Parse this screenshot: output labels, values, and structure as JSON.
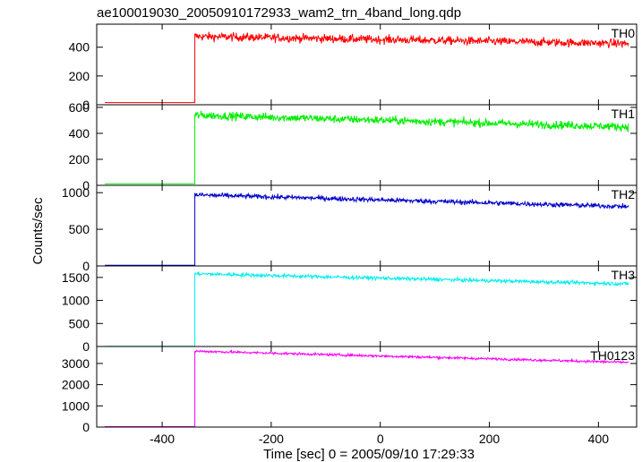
{
  "title": "ae100019030_20050910172933_wam2_trn_4band_long.qdp",
  "ylabel": "Counts/sec",
  "xlabel": "Time [sec] 0 = 2005/09/10 17:29:33",
  "chart_data": {
    "type": "line",
    "title": "ae100019030_20050910172933_wam2_trn_4band_long.qdp",
    "xlabel": "Time [sec] 0 = 2005/09/10 17:29:33",
    "ylabel": "Counts/sec",
    "xlim": [
      -520,
      470
    ],
    "x_ticks": [
      -400,
      -200,
      0,
      200,
      400
    ],
    "x_range_data": [
      -505,
      455
    ],
    "step_time": -340,
    "panels": [
      {
        "name": "TH0",
        "color": "#ff0000",
        "ylim": [
          0,
          560
        ],
        "y_ticks": [
          0,
          200,
          400
        ],
        "pre_level": 15,
        "post_start": 475,
        "post_end": 425,
        "noise": 28
      },
      {
        "name": "TH1",
        "color": "#00ee00",
        "ylim": [
          0,
          620
        ],
        "y_ticks": [
          0,
          200,
          400,
          600
        ],
        "pre_level": 12,
        "post_start": 540,
        "post_end": 450,
        "noise": 30
      },
      {
        "name": "TH2",
        "color": "#0000cc",
        "ylim": [
          0,
          1100
        ],
        "y_ticks": [
          0,
          500,
          1000
        ],
        "pre_level": 10,
        "post_start": 970,
        "post_end": 810,
        "noise": 32
      },
      {
        "name": "TH3",
        "color": "#00eeee",
        "ylim": [
          0,
          1750
        ],
        "y_ticks": [
          0,
          500,
          1000,
          1500
        ],
        "pre_level": 5,
        "post_start": 1580,
        "post_end": 1360,
        "noise": 38
      },
      {
        "name": "TH0123",
        "color": "#ff00ff",
        "ylim": [
          0,
          3800
        ],
        "y_ticks": [
          0,
          1000,
          2000,
          3000
        ],
        "pre_level": 20,
        "post_start": 3580,
        "post_end": 3050,
        "noise": 55
      }
    ]
  }
}
